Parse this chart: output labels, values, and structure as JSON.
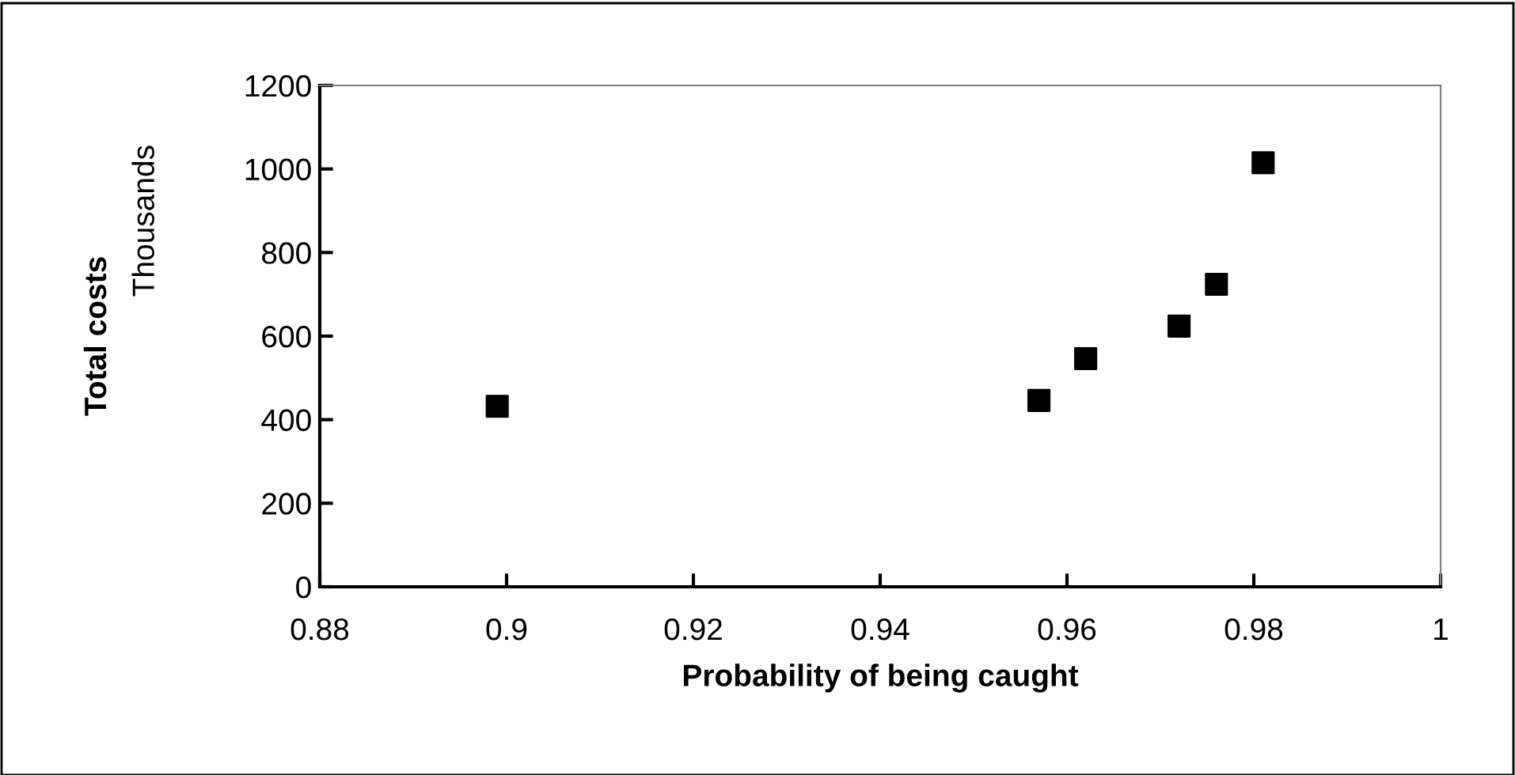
{
  "chart_data": {
    "type": "scatter",
    "xlabel": "Probability of being caught",
    "ylabel": "Total costs",
    "annotations": [
      "Thousands"
    ],
    "x": [
      0.899,
      0.957,
      0.962,
      0.972,
      0.976,
      0.981
    ],
    "series": [
      {
        "color": "#000000",
        "values": [
          432,
          446,
          546,
          624,
          724,
          1015
        ]
      }
    ],
    "marker": "square",
    "xlim": [
      0.88,
      1
    ],
    "xticks": [
      0.88,
      0.9,
      0.92,
      0.94,
      0.96,
      0.98,
      1
    ],
    "ylim": [
      0,
      1200
    ],
    "yticks": [
      0,
      200,
      400,
      600,
      800,
      1000,
      1200
    ],
    "grid": false,
    "legend": false
  }
}
